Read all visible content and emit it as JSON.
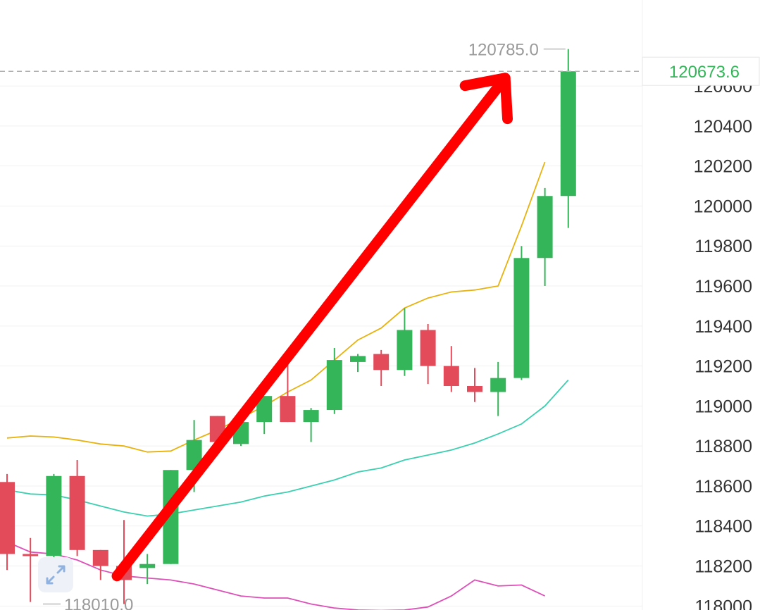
{
  "chart_data": {
    "type": "candlestick",
    "y_ticks": [
      120600,
      120400,
      120200,
      120000,
      119800,
      119600,
      119400,
      119200,
      119000,
      118800,
      118600,
      118400,
      118200,
      118000
    ],
    "ylim": [
      117980,
      121030
    ],
    "candles": [
      {
        "o": 118620,
        "h": 118660,
        "l": 118180,
        "c": 118260
      },
      {
        "o": 118260,
        "h": 118340,
        "l": 118020,
        "c": 118250
      },
      {
        "o": 118250,
        "h": 118660,
        "l": 118240,
        "c": 118650
      },
      {
        "o": 118650,
        "h": 118730,
        "l": 118250,
        "c": 118280
      },
      {
        "o": 118280,
        "h": 118280,
        "l": 118130,
        "c": 118200
      },
      {
        "o": 118200,
        "h": 118430,
        "l": 118010,
        "c": 118130
      },
      {
        "o": 118190,
        "h": 118260,
        "l": 118110,
        "c": 118210
      },
      {
        "o": 118210,
        "h": 118680,
        "l": 118210,
        "c": 118680
      },
      {
        "o": 118680,
        "h": 118930,
        "l": 118570,
        "c": 118830
      },
      {
        "o": 118950,
        "h": 118950,
        "l": 118800,
        "c": 118820
      },
      {
        "o": 118810,
        "h": 118920,
        "l": 118800,
        "c": 118920
      },
      {
        "o": 118920,
        "h": 119050,
        "l": 118860,
        "c": 119050
      },
      {
        "o": 119050,
        "h": 119220,
        "l": 118920,
        "c": 118920
      },
      {
        "o": 118920,
        "h": 118990,
        "l": 118820,
        "c": 118980
      },
      {
        "o": 118980,
        "h": 119290,
        "l": 118960,
        "c": 119230
      },
      {
        "o": 119220,
        "h": 119260,
        "l": 119170,
        "c": 119250
      },
      {
        "o": 119260,
        "h": 119280,
        "l": 119100,
        "c": 119180
      },
      {
        "o": 119180,
        "h": 119490,
        "l": 119150,
        "c": 119380
      },
      {
        "o": 119380,
        "h": 119410,
        "l": 119110,
        "c": 119200
      },
      {
        "o": 119200,
        "h": 119300,
        "l": 119070,
        "c": 119100
      },
      {
        "o": 119100,
        "h": 119190,
        "l": 119020,
        "c": 119070
      },
      {
        "o": 119070,
        "h": 119220,
        "l": 118950,
        "c": 119140
      },
      {
        "o": 119140,
        "h": 119800,
        "l": 119130,
        "c": 119740
      },
      {
        "o": 119740,
        "h": 120090,
        "l": 119600,
        "c": 120050
      },
      {
        "o": 120050,
        "h": 120785,
        "l": 119890,
        "c": 120673.6
      }
    ],
    "ma_short": [
      118840,
      118850,
      118845,
      118830,
      118810,
      118800,
      118770,
      118775,
      118830,
      118880,
      118940,
      119000,
      119070,
      119130,
      119230,
      119330,
      119390,
      119490,
      119540,
      119570,
      119580,
      119600,
      119900,
      120220
    ],
    "ma_short_color": "#e8b20e",
    "ma_mid": [
      118580,
      118560,
      118555,
      118530,
      118500,
      118470,
      118450,
      118460,
      118480,
      118500,
      118520,
      118550,
      118570,
      118600,
      118630,
      118670,
      118690,
      118730,
      118755,
      118780,
      118815,
      118860,
      118910,
      119000,
      119130
    ],
    "ma_mid_color": "#3ccfb0",
    "ma_long": [
      118320,
      118270,
      118260,
      118230,
      118180,
      118150,
      118140,
      118130,
      118110,
      118080,
      118050,
      118040,
      118040,
      118010,
      117990,
      117980,
      117978,
      117980,
      117995,
      118050,
      118130,
      118100,
      118105,
      118050
    ],
    "ma_long_color": "#dd50b8",
    "up_color": "#35b559",
    "down_color": "#e34b5a",
    "high_label": "120785.0",
    "low_label": "118010.0",
    "last_price": 120673.6,
    "last_price_label": "120673.6",
    "arrow_color": "#ff0000",
    "arrow_from": {
      "index": 4.7,
      "value": 118150
    },
    "arrow_to": {
      "index": 21.3,
      "value": 120640
    }
  },
  "controls": {
    "expand_icon": "expand-arrows-icon"
  }
}
